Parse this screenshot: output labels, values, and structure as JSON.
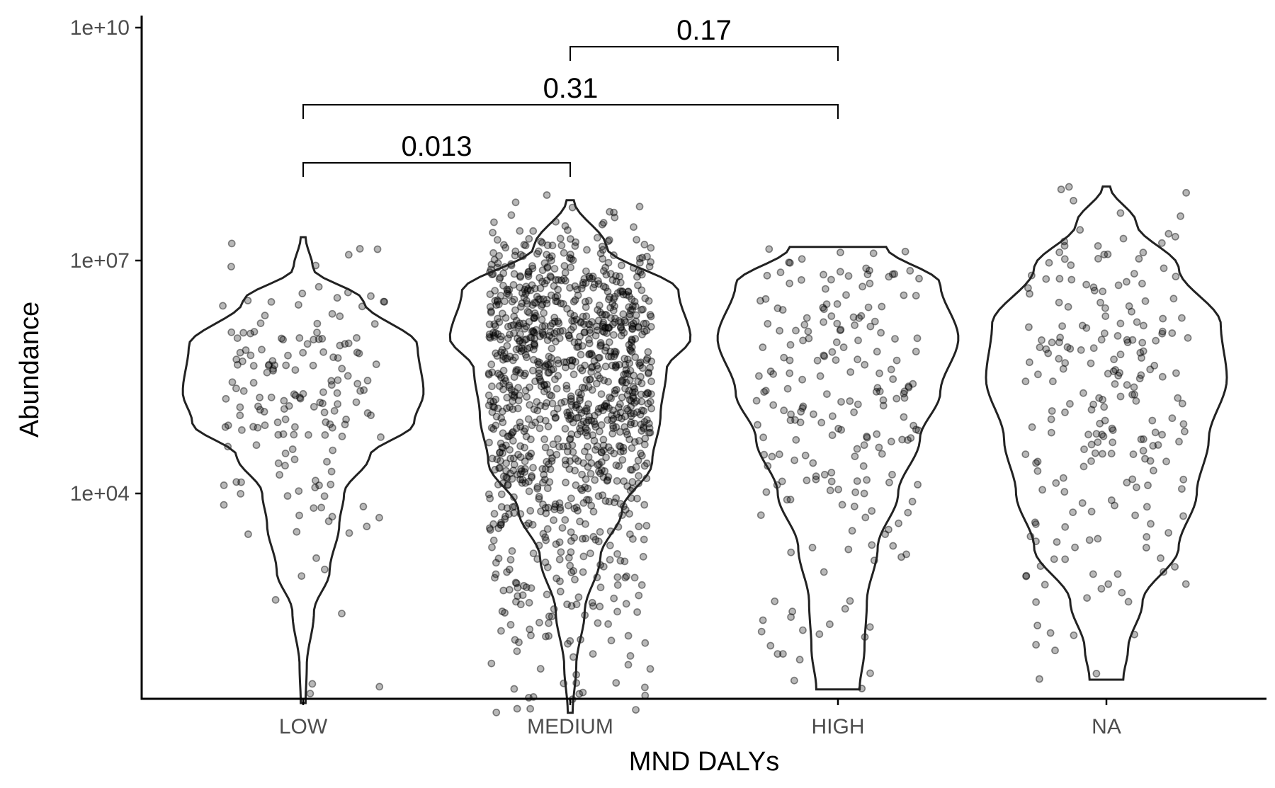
{
  "chart_data": {
    "type": "violin",
    "title": "",
    "xlabel": "MND DALYs",
    "ylabel": "Abundance",
    "y_scale": "log10",
    "ylim": [
      10,
      10000000000
    ],
    "y_ticks": [
      {
        "value": 10000,
        "label": "1e+04"
      },
      {
        "value": 10000000,
        "label": "1e+07"
      },
      {
        "value": 10000000000,
        "label": "1e+10"
      }
    ],
    "categories": [
      "LOW",
      "MEDIUM",
      "HIGH",
      "NA"
    ],
    "groups": [
      {
        "name": "LOW",
        "n_points": 170,
        "range": [
          20,
          20000000
        ],
        "violin_width_profile": [
          {
            "abundance": 20,
            "rel_width": 0.02
          },
          {
            "abundance": 60,
            "rel_width": 0.03
          },
          {
            "abundance": 300,
            "rel_width": 0.09
          },
          {
            "abundance": 1000,
            "rel_width": 0.22
          },
          {
            "abundance": 4000,
            "rel_width": 0.3
          },
          {
            "abundance": 10000,
            "rel_width": 0.34
          },
          {
            "abundance": 30000,
            "rel_width": 0.55
          },
          {
            "abundance": 80000,
            "rel_width": 0.92
          },
          {
            "abundance": 200000,
            "rel_width": 1.0
          },
          {
            "abundance": 800000,
            "rel_width": 0.95
          },
          {
            "abundance": 3000000,
            "rel_width": 0.5
          },
          {
            "abundance": 8000000,
            "rel_width": 0.08
          },
          {
            "abundance": 20000000,
            "rel_width": 0.02
          }
        ],
        "points_range": [
          20,
          20000000
        ]
      },
      {
        "name": "MEDIUM",
        "n_points": 1150,
        "range": [
          15,
          60000000
        ],
        "violin_width_profile": [
          {
            "abundance": 15,
            "rel_width": 0.02
          },
          {
            "abundance": 60,
            "rel_width": 0.05
          },
          {
            "abundance": 300,
            "rel_width": 0.12
          },
          {
            "abundance": 1500,
            "rel_width": 0.25
          },
          {
            "abundance": 6000,
            "rel_width": 0.43
          },
          {
            "abundance": 25000,
            "rel_width": 0.68
          },
          {
            "abundance": 100000,
            "rel_width": 0.75
          },
          {
            "abundance": 400000,
            "rel_width": 0.8
          },
          {
            "abundance": 1000000,
            "rel_width": 1.0
          },
          {
            "abundance": 4000000,
            "rel_width": 0.9
          },
          {
            "abundance": 15000000,
            "rel_width": 0.3
          },
          {
            "abundance": 60000000,
            "rel_width": 0.03
          }
        ],
        "points_range": [
          15,
          70000000
        ]
      },
      {
        "name": "HIGH",
        "n_points": 210,
        "range": [
          30,
          15000000
        ],
        "violin_width_profile": [
          {
            "abundance": 30,
            "rel_width": 0.18
          },
          {
            "abundance": 100,
            "rel_width": 0.22
          },
          {
            "abundance": 400,
            "rel_width": 0.24
          },
          {
            "abundance": 2000,
            "rel_width": 0.33
          },
          {
            "abundance": 10000,
            "rel_width": 0.5
          },
          {
            "abundance": 50000,
            "rel_width": 0.68
          },
          {
            "abundance": 200000,
            "rel_width": 0.85
          },
          {
            "abundance": 1000000,
            "rel_width": 1.0
          },
          {
            "abundance": 5000000,
            "rel_width": 0.85
          },
          {
            "abundance": 15000000,
            "rel_width": 0.4
          }
        ],
        "points_range": [
          30,
          15000000
        ]
      },
      {
        "name": "NA",
        "n_points": 220,
        "range": [
          40,
          90000000
        ],
        "violin_width_profile": [
          {
            "abundance": 40,
            "rel_width": 0.14
          },
          {
            "abundance": 100,
            "rel_width": 0.18
          },
          {
            "abundance": 400,
            "rel_width": 0.3
          },
          {
            "abundance": 2000,
            "rel_width": 0.6
          },
          {
            "abundance": 10000,
            "rel_width": 0.75
          },
          {
            "abundance": 50000,
            "rel_width": 0.85
          },
          {
            "abundance": 300000,
            "rel_width": 1.0
          },
          {
            "abundance": 1500000,
            "rel_width": 0.95
          },
          {
            "abundance": 8000000,
            "rel_width": 0.6
          },
          {
            "abundance": 30000000,
            "rel_width": 0.25
          },
          {
            "abundance": 90000000,
            "rel_width": 0.03
          }
        ],
        "points_range": [
          40,
          100000000
        ]
      }
    ],
    "comparisons": [
      {
        "from": "LOW",
        "to": "MEDIUM",
        "p_label": "0.013"
      },
      {
        "from": "LOW",
        "to": "HIGH",
        "p_label": "0.31"
      },
      {
        "from": "MEDIUM",
        "to": "HIGH",
        "p_label": "0.17"
      }
    ],
    "legend": "none",
    "grid": false
  }
}
